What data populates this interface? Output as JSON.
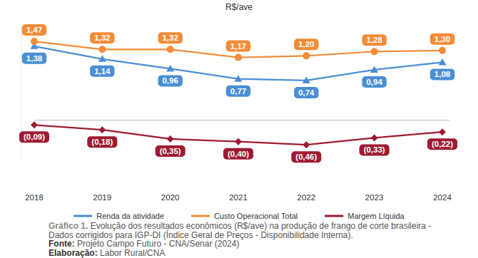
{
  "chart_data": {
    "type": "line",
    "title": "R$/ave",
    "categories": [
      "2018",
      "2019",
      "2020",
      "2021",
      "2022",
      "2023",
      "2024"
    ],
    "series": [
      {
        "name": "Renda da atividade",
        "color": "#4a8fd4",
        "marker": "triangle",
        "values": [
          1.38,
          1.14,
          0.96,
          0.77,
          0.74,
          0.94,
          1.08
        ],
        "value_labels": [
          "1,38",
          "1,14",
          "0,96",
          "0,77",
          "0,74",
          "0,94",
          "1,08"
        ]
      },
      {
        "name": "Custo Operacional Total",
        "color": "#f28c38",
        "marker": "circle",
        "values": [
          1.47,
          1.32,
          1.32,
          1.17,
          1.2,
          1.28,
          1.3
        ],
        "value_labels": [
          "1,47",
          "1,32",
          "1,32",
          "1,17",
          "1,20",
          "1,28",
          "1,30"
        ]
      },
      {
        "name": "Margem Líquida",
        "color": "#9e1b32",
        "marker": "diamond",
        "values": [
          -0.09,
          -0.18,
          -0.35,
          -0.4,
          -0.46,
          -0.33,
          -0.22
        ],
        "value_labels": [
          "(0,09)",
          "(0,18)",
          "(0,35)",
          "(0,40)",
          "(0,46)",
          "(0,33)",
          "(0,22)"
        ]
      }
    ],
    "ylim": [
      -0.75,
      1.75
    ],
    "yticks": [
      0
    ],
    "grid": true,
    "tick_labels": "x",
    "data_labels": true,
    "legend": "bottom",
    "caption_label": "Gráfico 1.",
    "caption": "Evolução dos resultados econômicos (R$/ave) na produção de frango de corte brasileira - Dados corrigidos para IGP-DI (Índice Geral de Preços - Disponibilidade Interna).",
    "source_label": "Fonte:",
    "source": "Projeto Campo Futuro - CNA/Senar (2024)",
    "credit_label": "Elaboração:",
    "credit": "Labor Rural/CNA"
  }
}
